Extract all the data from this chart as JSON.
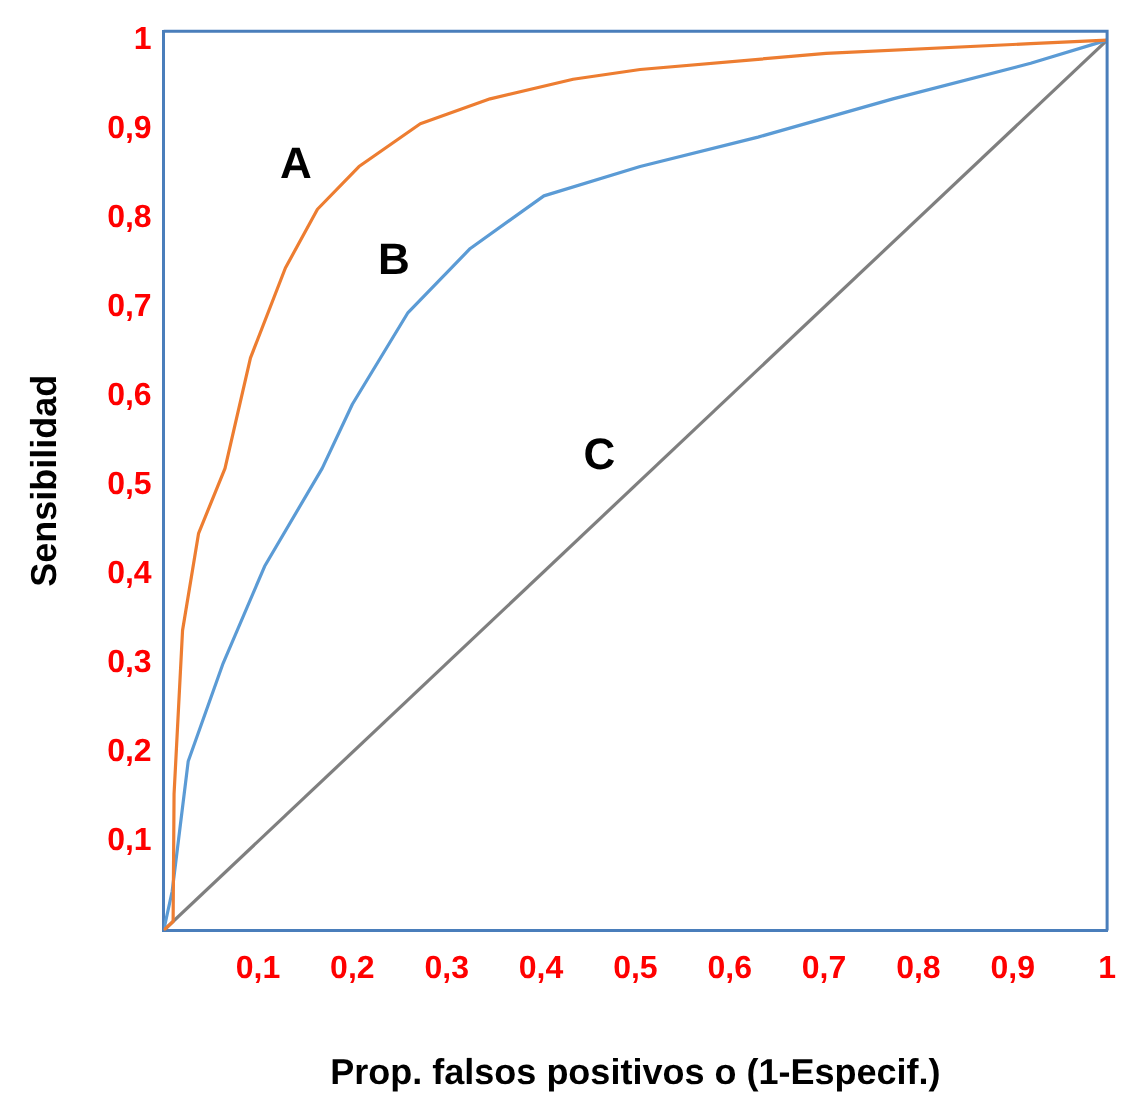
{
  "chart_data": {
    "type": "line",
    "xlabel": "Prop. falsos positivos o (1-Especif.)",
    "ylabel": "Sensibilidad",
    "xlim": [
      0,
      1
    ],
    "ylim": [
      0,
      1.01
    ],
    "xticks": [
      {
        "value": 0.1,
        "label": "0,1"
      },
      {
        "value": 0.2,
        "label": "0,2"
      },
      {
        "value": 0.3,
        "label": "0,3"
      },
      {
        "value": 0.4,
        "label": "0,4"
      },
      {
        "value": 0.5,
        "label": "0,5"
      },
      {
        "value": 0.6,
        "label": "0,6"
      },
      {
        "value": 0.7,
        "label": "0,7"
      },
      {
        "value": 0.8,
        "label": "0,8"
      },
      {
        "value": 0.9,
        "label": "0,9"
      },
      1
    ],
    "yticks": [
      {
        "value": 0.1,
        "label": "0,1"
      },
      {
        "value": 0.2,
        "label": "0,2"
      },
      {
        "value": 0.3,
        "label": "0,3"
      },
      {
        "value": 0.4,
        "label": "0,4"
      },
      {
        "value": 0.5,
        "label": "0,5"
      },
      {
        "value": 0.6,
        "label": "0,6"
      },
      {
        "value": 0.7,
        "label": "0,7"
      },
      {
        "value": 0.8,
        "label": "0,8"
      },
      {
        "value": 0.9,
        "label": "0,9"
      },
      1
    ],
    "series": [
      {
        "name": "A",
        "color": "#ed7d31",
        "x": [
          0,
          0.01,
          0.011,
          0.02,
          0.037,
          0.065,
          0.092,
          0.129,
          0.163,
          0.207,
          0.272,
          0.346,
          0.434,
          0.505,
          0.702,
          0.919,
          1
        ],
        "values": [
          0,
          0.01,
          0.153,
          0.337,
          0.446,
          0.519,
          0.643,
          0.744,
          0.81,
          0.858,
          0.906,
          0.934,
          0.956,
          0.967,
          0.985,
          0.996,
          1
        ]
      },
      {
        "name": "B",
        "color": "#5b9bd5",
        "x": [
          0,
          0.009,
          0.026,
          0.063,
          0.107,
          0.168,
          0.2,
          0.259,
          0.325,
          0.403,
          0.505,
          0.63,
          0.773,
          0.919,
          1
        ],
        "values": [
          0,
          0.044,
          0.19,
          0.3,
          0.409,
          0.519,
          0.591,
          0.694,
          0.766,
          0.825,
          0.858,
          0.891,
          0.934,
          0.974,
          1
        ]
      },
      {
        "name": "C",
        "color": "#7f7f7f",
        "x": [
          0,
          1
        ],
        "values": [
          0,
          1
        ]
      }
    ],
    "grid": false,
    "legend": false,
    "marker": "none",
    "line_style": "solid"
  }
}
